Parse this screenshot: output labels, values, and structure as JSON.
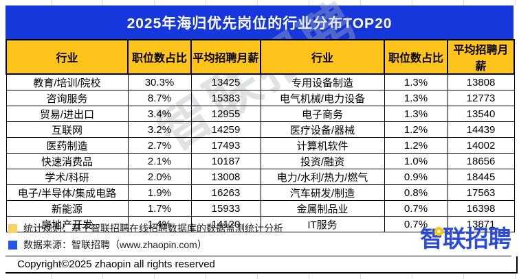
{
  "title": "2025年海归优先岗位的行业分布TOP20",
  "table": {
    "headers": [
      "行业",
      "职位数占比",
      "平均招聘月薪"
    ],
    "left_rows": [
      {
        "industry": "教育/培训/院校",
        "share": "30.3%",
        "salary": "13425"
      },
      {
        "industry": "咨询服务",
        "share": "8.7%",
        "salary": "15383"
      },
      {
        "industry": "贸易/进出口",
        "share": "3.4%",
        "salary": "12955"
      },
      {
        "industry": "互联网",
        "share": "3.2%",
        "salary": "14259"
      },
      {
        "industry": "医药制造",
        "share": "2.7%",
        "salary": "17493"
      },
      {
        "industry": "快速消费品",
        "share": "2.1%",
        "salary": "10187"
      },
      {
        "industry": "学术/科研",
        "share": "2.0%",
        "salary": "13008"
      },
      {
        "industry": "电子/半导体/集成电路",
        "share": "1.9%",
        "salary": "16263"
      },
      {
        "industry": "新能源",
        "share": "1.7%",
        "salary": "15933"
      },
      {
        "industry": "房地产开发",
        "share": "1.4%",
        "salary": "14120"
      }
    ],
    "right_rows": [
      {
        "industry": "专用设备制造",
        "share": "1.3%",
        "salary": "13808"
      },
      {
        "industry": "电气机械/电力设备",
        "share": "1.3%",
        "salary": "12773"
      },
      {
        "industry": "电子商务",
        "share": "1.3%",
        "salary": "13540"
      },
      {
        "industry": "医疗设备/器械",
        "share": "1.2%",
        "salary": "14439"
      },
      {
        "industry": "计算机软件",
        "share": "1.2%",
        "salary": "14002"
      },
      {
        "industry": "投资/融资",
        "share": "1.0%",
        "salary": "18656"
      },
      {
        "industry": "电力/水利/热力/燃气",
        "share": "0.9%",
        "salary": "18445"
      },
      {
        "industry": "汽车研发/制造",
        "share": "0.8%",
        "salary": "17563"
      },
      {
        "industry": "金属制品业",
        "share": "0.7%",
        "salary": "16398"
      },
      {
        "industry": "IT服务",
        "share": "0.7%",
        "salary": "13871"
      }
    ]
  },
  "chart_data": {
    "type": "table",
    "title": "2025年海归优先岗位的行业分布TOP20",
    "columns": [
      "行业",
      "职位数占比",
      "平均招聘月薪"
    ],
    "rows": [
      [
        "教育/培训/院校",
        "30.3%",
        13425
      ],
      [
        "咨询服务",
        "8.7%",
        15383
      ],
      [
        "贸易/进出口",
        "3.4%",
        12955
      ],
      [
        "互联网",
        "3.2%",
        14259
      ],
      [
        "医药制造",
        "2.7%",
        17493
      ],
      [
        "快速消费品",
        "2.1%",
        10187
      ],
      [
        "学术/科研",
        "2.0%",
        13008
      ],
      [
        "电子/半导体/集成电路",
        "1.9%",
        16263
      ],
      [
        "新能源",
        "1.7%",
        15933
      ],
      [
        "房地产开发",
        "1.4%",
        14120
      ],
      [
        "专用设备制造",
        "1.3%",
        13808
      ],
      [
        "电气机械/电力设备",
        "1.3%",
        12773
      ],
      [
        "电子商务",
        "1.3%",
        13540
      ],
      [
        "医疗设备/器械",
        "1.2%",
        14439
      ],
      [
        "计算机软件",
        "1.2%",
        14002
      ],
      [
        "投资/融资",
        "1.0%",
        18656
      ],
      [
        "电力/水利/热力/燃气",
        "0.9%",
        18445
      ],
      [
        "汽车研发/制造",
        "0.8%",
        17563
      ],
      [
        "金属制品业",
        "0.7%",
        16398
      ],
      [
        "IT服务",
        "0.7%",
        13871
      ]
    ],
    "layout": "two side-by-side 3-column groups, 10 rows each, ranked left column first"
  },
  "watermark": "智联招聘",
  "footer": {
    "stat_rule": "统计规则：基于智联招聘在线招聘数据库的数据监测统计分析",
    "data_source": "数据来源：智联招聘（www.zhaopin.com）",
    "copyright": "Copyright©2025 zhaopin all rights reserved",
    "logo_text": "智联招聘"
  },
  "colors": {
    "banner_blue": "#1537db",
    "header_yellow": "#ffc41a",
    "legend_yellow": "#fad163",
    "legend_blue": "#2456e8",
    "logo_blue": "#2b4bdb",
    "logo_dot_yellow": "#ffc400"
  }
}
